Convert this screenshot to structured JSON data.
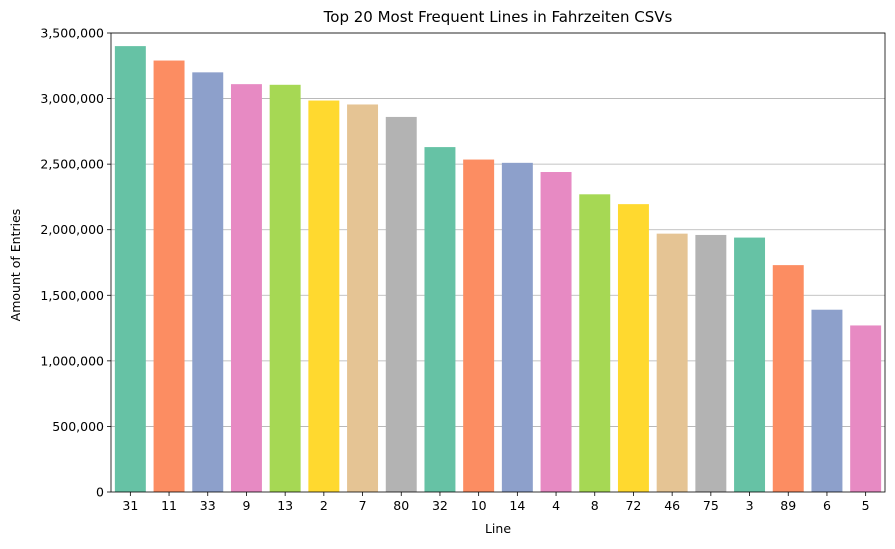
{
  "chart_data": {
    "type": "bar",
    "title": "Top 20 Most Frequent Lines in Fahrzeiten CSVs",
    "xlabel": "Line",
    "ylabel": "Amount of Entries",
    "categories": [
      "31",
      "11",
      "33",
      "9",
      "13",
      "2",
      "7",
      "80",
      "32",
      "10",
      "14",
      "4",
      "8",
      "72",
      "46",
      "75",
      "3",
      "89",
      "6",
      "5"
    ],
    "values": [
      3400000,
      3290000,
      3200000,
      3110000,
      3105000,
      2985000,
      2955000,
      2860000,
      2630000,
      2535000,
      2510000,
      2440000,
      2270000,
      2195000,
      1970000,
      1960000,
      1940000,
      1730000,
      1390000,
      1270000
    ],
    "ylim": [
      0,
      3500000
    ],
    "yticks": [
      0,
      500000,
      1000000,
      1500000,
      2000000,
      2500000,
      3000000,
      3500000
    ],
    "ytick_labels": [
      "0",
      "500,000",
      "1,000,000",
      "1,500,000",
      "2,000,000",
      "2,500,000",
      "3,000,000",
      "3,500,000"
    ],
    "grid": "horizontal",
    "legend": "none",
    "palette": [
      "#66c2a5",
      "#fc8d62",
      "#8da0cb",
      "#e78ac3",
      "#a6d854",
      "#ffd92f",
      "#e5c494",
      "#b3b3b3"
    ]
  }
}
